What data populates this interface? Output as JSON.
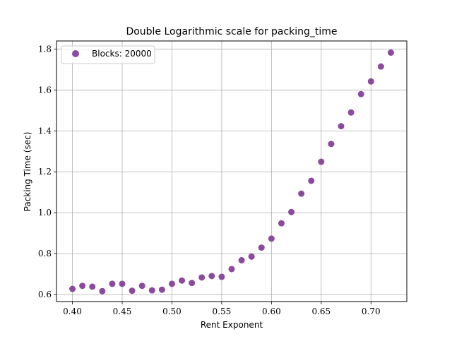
{
  "chart_data": {
    "type": "scatter",
    "title": "Double Logarithmic scale for packing_time",
    "xlabel": "Rent Exponent",
    "ylabel": "Packing Time (sec)",
    "xlim": [
      0.384,
      0.736
    ],
    "ylim": [
      0.565,
      1.84
    ],
    "xticks": [
      0.4,
      0.45,
      0.5,
      0.55,
      0.6,
      0.65,
      0.7
    ],
    "xtick_labels": [
      "0.40",
      "0.45",
      "0.50",
      "0.55",
      "0.60",
      "0.65",
      "0.70"
    ],
    "yticks": [
      0.6,
      0.8,
      1.0,
      1.2,
      1.4,
      1.6,
      1.8
    ],
    "ytick_labels": [
      "0.6",
      "0.8",
      "1.0",
      "1.2",
      "1.4",
      "1.6",
      "1.8"
    ],
    "grid": true,
    "legend_position": "top-left",
    "series": [
      {
        "name": "Blocks: 20000",
        "color": "#8c4a9e",
        "x": [
          0.4,
          0.41,
          0.42,
          0.43,
          0.44,
          0.45,
          0.46,
          0.47,
          0.48,
          0.49,
          0.5,
          0.51,
          0.52,
          0.53,
          0.54,
          0.55,
          0.56,
          0.57,
          0.58,
          0.59,
          0.6,
          0.61,
          0.62,
          0.63,
          0.64,
          0.65,
          0.66,
          0.67,
          0.68,
          0.69,
          0.7,
          0.71,
          0.72
        ],
        "y": [
          0.627,
          0.642,
          0.638,
          0.616,
          0.652,
          0.652,
          0.618,
          0.642,
          0.62,
          0.623,
          0.652,
          0.668,
          0.656,
          0.683,
          0.69,
          0.686,
          0.724,
          0.767,
          0.785,
          0.829,
          0.873,
          0.948,
          1.003,
          1.093,
          1.156,
          1.249,
          1.336,
          1.423,
          1.49,
          1.58,
          1.642,
          1.715,
          1.783
        ]
      }
    ]
  }
}
